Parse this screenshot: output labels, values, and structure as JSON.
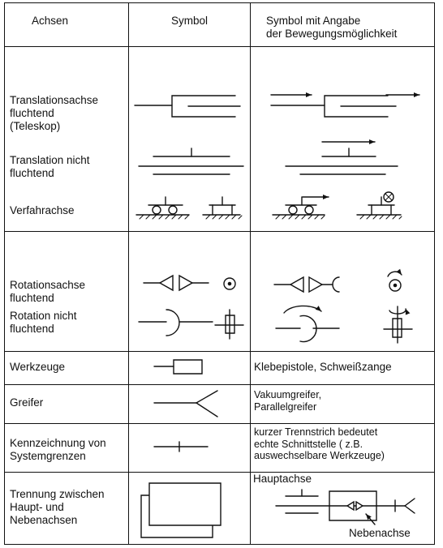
{
  "headers": {
    "axes": "Achsen",
    "symbol": "Symbol",
    "movement": "Symbol mit Angabe\nder Bewegungsmöglichkeit"
  },
  "rows": {
    "telescope": "Translationsachse\nfluchtend\n(Teleskop)",
    "translation_non_aligned": "Translation nicht\nfluchtend",
    "traverse": "Verfahrachse",
    "rotation_aligned": "Rotationsachse\nfluchtend",
    "rotation_non_aligned": "Rotation nicht\nfluchtend",
    "tools": "Werkzeuge",
    "gripper": "Greifer",
    "system_boundaries": "Kennzeichnung von\nSystemgrenzen",
    "separation": "Trennung zwischen\nHaupt- und\nNebenachsen"
  },
  "descriptions": {
    "tools": "Klebepistole, Schweißzange",
    "gripper": "Vakuumgreifer,\nParallelgreifer",
    "system_boundaries": "kurzer Trennstrich bedeutet\nechte Schnittstelle ( z.B.\nauswechselbare Werkzeuge)",
    "main_axis": "Hauptachse",
    "secondary_axis": "Nebenachse"
  }
}
